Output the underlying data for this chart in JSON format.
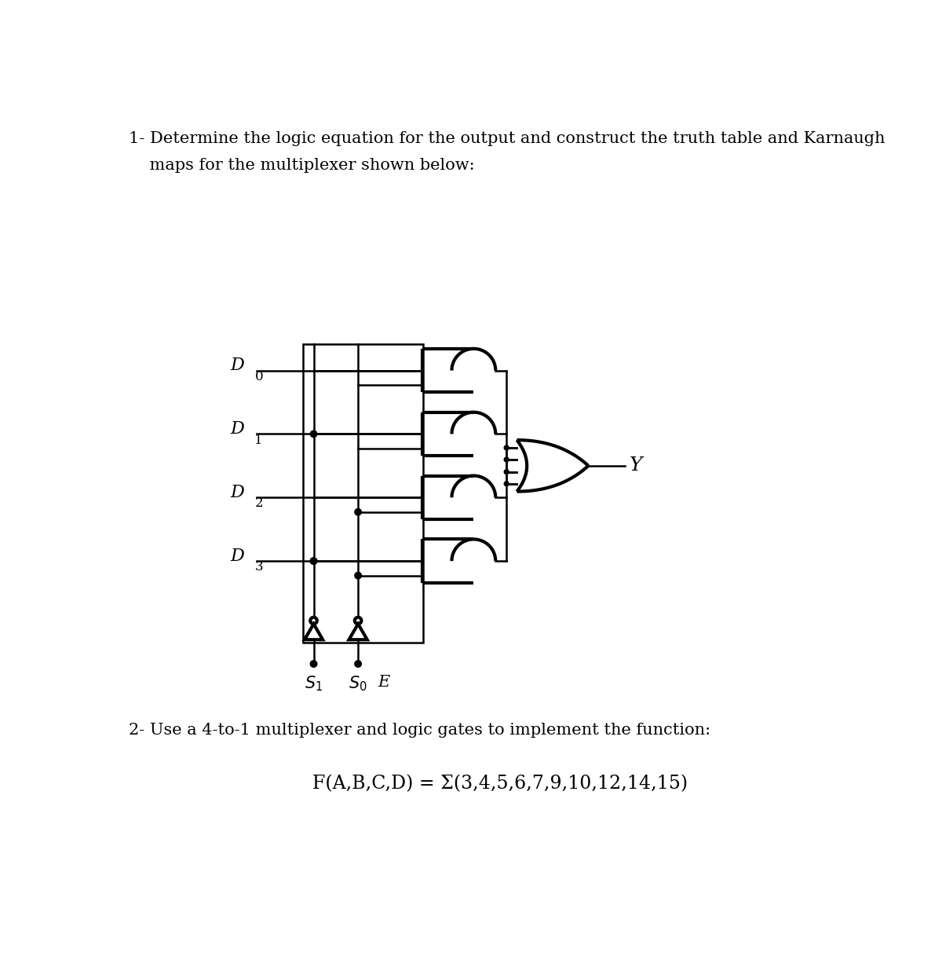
{
  "title1": "1- Determine the logic equation for the output and construct the truth table and Karnaugh",
  "title2": "    maps for the multiplexer shown below:",
  "title3": "2- Use a 4-to-1 multiplexer and logic gates to implement the function:",
  "formula": "F(A,B,C,D) = Σ(3,4,5,6,7,9,10,12,14,15)",
  "bg_color": "#ffffff",
  "text_color": "#000000",
  "line_color": "#000000",
  "lw": 1.8,
  "glw": 3.0,
  "font_size_text": 15,
  "font_size_formula": 17,
  "font_size_labels": 15,
  "font_size_sub": 11
}
